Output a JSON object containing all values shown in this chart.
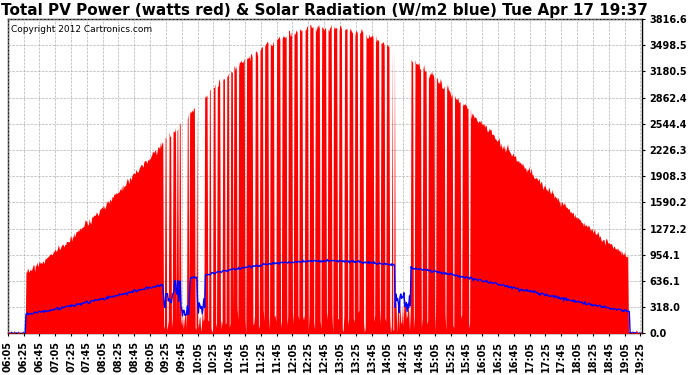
{
  "title": "Total PV Power (watts red) & Solar Radiation (W/m2 blue) Tue Apr 17 19:37",
  "copyright": "Copyright 2012 Cartronics.com",
  "ylabel_right_values": [
    3816.6,
    3498.5,
    3180.5,
    2862.4,
    2544.4,
    2226.3,
    1908.3,
    1590.2,
    1272.2,
    954.1,
    636.1,
    318.0,
    0.0
  ],
  "ymax": 3816.6,
  "ymin": 0.0,
  "background_color": "#ffffff",
  "plot_bg_color": "#ffffff",
  "grid_color": "#aaaaaa",
  "bar_color": "#ff0000",
  "line_color": "#0000ff",
  "title_fontsize": 11,
  "tick_fontsize": 7,
  "x_tick_interval_min": 20
}
